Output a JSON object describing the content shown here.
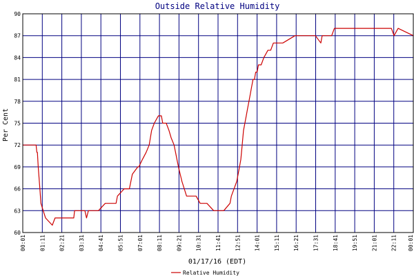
{
  "chart_data": {
    "type": "line",
    "title": "Outside Relative Humidity",
    "xlabel": "01/17/16 (EDT)",
    "ylabel": "Per Cent",
    "ylim": [
      60,
      90
    ],
    "yticks": [
      60,
      63,
      66,
      69,
      72,
      75,
      78,
      81,
      84,
      87,
      90
    ],
    "x_tick_labels": [
      "00:01",
      "01:11",
      "02:21",
      "03:31",
      "04:41",
      "05:51",
      "07:01",
      "08:11",
      "09:21",
      "10:31",
      "11:41",
      "12:51",
      "14:01",
      "15:11",
      "16:21",
      "17:31",
      "18:41",
      "19:51",
      "21:01",
      "22:11",
      "00:01"
    ],
    "x_range_minutes": [
      1,
      1441
    ],
    "grid": true,
    "legend_position": "bottom-center",
    "colors": {
      "line": "#cc0000",
      "grid": "#000080",
      "title": "#000080"
    },
    "series": [
      {
        "name": "Relative Humidity",
        "x": [
          1,
          30,
          33,
          35,
          38,
          40,
          43,
          46,
          50,
          53,
          55,
          58,
          62,
          64,
          68,
          85,
          110,
          120,
          183,
          185,
          187,
          189,
          192,
          230,
          236,
          243,
          280,
          305,
          310,
          325,
          345,
          350,
          375,
          383,
          394,
          405,
          425,
          429,
          442,
          456,
          467,
          476,
          486,
          501,
          512,
          517,
          523,
          530,
          540,
          548,
          559,
          575,
          588,
          605,
          635,
          640,
          655,
          680,
          705,
          730,
          742,
          765,
          770,
          780,
          790,
          795,
          800,
          805,
          810,
          815,
          820,
          825,
          830,
          835,
          840,
          845,
          850,
          855,
          860,
          865,
          870,
          880,
          890,
          905,
          913,
          915,
          925,
          955,
          960,
          1005,
          1010,
          1015,
          1035,
          1080,
          1100,
          1105,
          1140,
          1150,
          1155,
          1230,
          1235,
          1240,
          1360,
          1370,
          1385,
          1441
        ],
        "values": [
          72,
          72,
          72,
          72,
          72,
          72,
          72,
          72,
          72,
          71,
          71,
          69,
          67,
          66,
          64,
          62,
          61,
          62,
          62,
          62,
          62,
          62,
          63,
          63,
          62,
          63,
          63,
          64,
          64,
          64,
          64,
          65,
          66,
          66,
          66,
          68,
          69,
          69,
          70,
          71,
          72,
          74,
          75,
          76,
          76,
          75,
          75,
          75,
          74,
          73,
          72,
          69,
          67,
          65,
          65,
          65,
          64,
          64,
          63,
          63,
          63,
          64,
          65,
          66,
          67,
          68,
          69,
          70,
          72,
          74,
          75,
          76,
          77,
          78,
          79,
          80,
          81,
          81,
          82,
          82,
          83,
          83,
          84,
          85,
          85,
          85,
          86,
          86,
          86,
          87,
          87,
          87,
          87,
          87,
          86,
          87,
          87,
          88,
          88,
          88,
          88,
          88,
          88,
          87,
          88,
          87
        ]
      }
    ]
  }
}
